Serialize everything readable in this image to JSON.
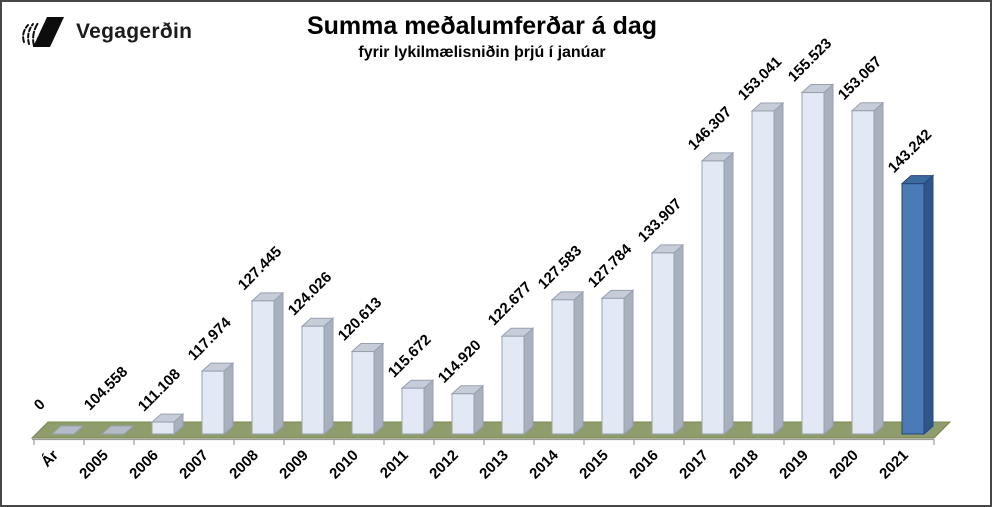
{
  "logo": {
    "text": "Vegagerðin"
  },
  "chart_data": {
    "type": "bar",
    "style": "3d-column",
    "title": "Summa meðalumferðar á dag",
    "subtitle": "fyrir lykilmælisniðin þrjú í janúar",
    "categories": [
      "Ár",
      "2005",
      "2006",
      "2007",
      "2008",
      "2009",
      "2010",
      "2011",
      "2012",
      "2013",
      "2014",
      "2015",
      "2016",
      "2017",
      "2018",
      "2019",
      "2020",
      "2021"
    ],
    "values": [
      0,
      104558,
      111108,
      117974,
      127445,
      124026,
      120613,
      115672,
      114920,
      122677,
      127583,
      127784,
      133907,
      146307,
      153041,
      155523,
      153067,
      143242
    ],
    "value_labels": [
      "0",
      "104.558",
      "111.108",
      "117.974",
      "127.445",
      "124.026",
      "120.613",
      "115.672",
      "114.920",
      "122.677",
      "127.583",
      "127.784",
      "133.907",
      "146.307",
      "153.041",
      "155.523",
      "153.067",
      "143.242"
    ],
    "highlight_index": 17,
    "highlight_category": "2021",
    "xlabel": "",
    "ylabel": "",
    "ylim": [
      109500,
      156000
    ],
    "grid": false,
    "legend": false,
    "value_axis_visible": false,
    "bars_below_axis_min_drawn_flat": true,
    "colors": {
      "bar_front": "#E2E8F4",
      "bar_top": "#C6CDD9",
      "bar_side": "#A9B1BF",
      "bar_edge": "#98A0AF",
      "flat_tile": "#B4BBC8",
      "flat_tile_edge": "#9AA1B0",
      "highlight_front": "#4A7BB6",
      "highlight_top": "#3D6A9E",
      "highlight_side": "#2F5685",
      "highlight_edge": "#24497C",
      "floor": "#8F9C6B",
      "floor_edge": "#7A874F",
      "axis": "#9B9B9B",
      "label_text": "#000000"
    }
  }
}
